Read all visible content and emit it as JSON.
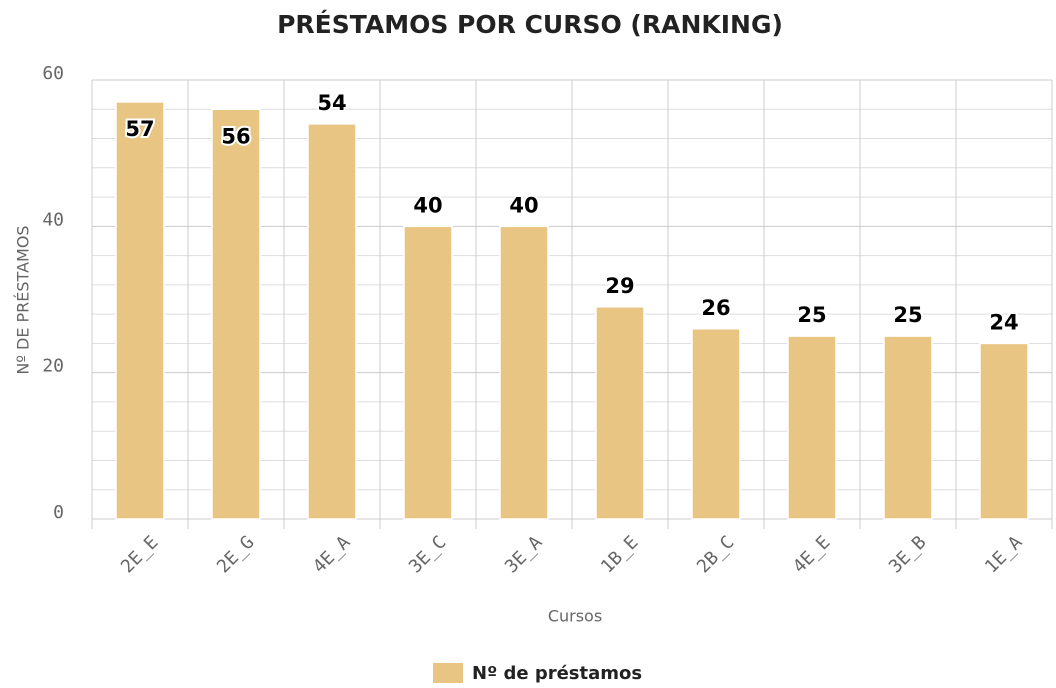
{
  "chart_data": {
    "type": "bar",
    "title": "PRÉSTAMOS POR CURSO (RANKING)",
    "x_label": "Cursos",
    "y_label": "Nº DE PRÉSTAMOS",
    "categories": [
      "2E_E",
      "2E_G",
      "4E_A",
      "3E_C",
      "3E_A",
      "1B_E",
      "2B_C",
      "4E_E",
      "3E_B",
      "1E_A"
    ],
    "series": [
      {
        "name": "Nº de préstamos",
        "color": "#e8c583",
        "values": [
          57,
          56,
          54,
          40,
          40,
          29,
          26,
          25,
          25,
          24
        ]
      }
    ],
    "ylim": [
      0,
      60
    ],
    "yticks": [
      0,
      20,
      40,
      60
    ],
    "minor_yticks": [
      4,
      8,
      12,
      16,
      24,
      28,
      32,
      36,
      44,
      48,
      52,
      56
    ],
    "grid": true,
    "legend": "bottom"
  }
}
